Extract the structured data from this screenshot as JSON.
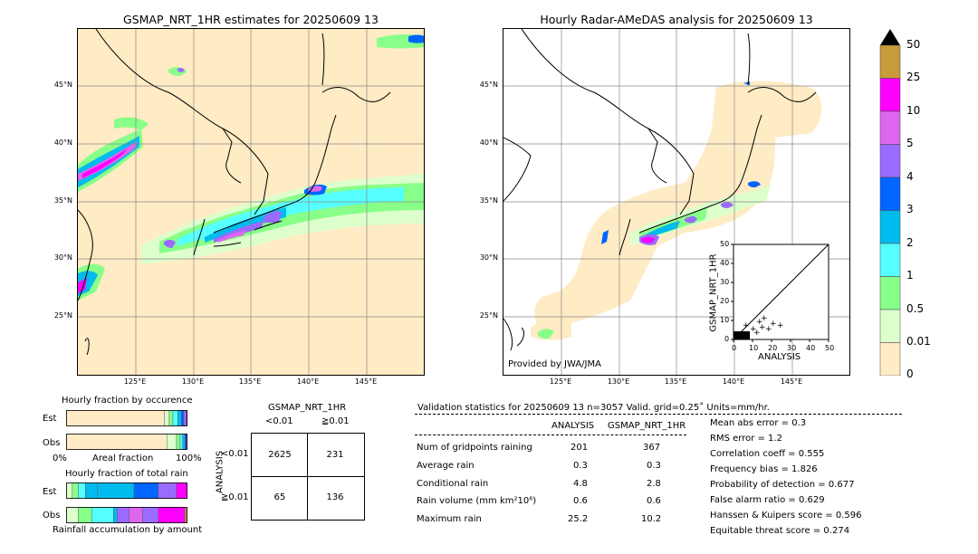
{
  "left_map": {
    "title": "GSMAP_NRT_1HR estimates for 20250609 13",
    "lat_labels": [
      "45°N",
      "40°N",
      "35°N",
      "30°N",
      "25°N"
    ],
    "lon_labels": [
      "125°E",
      "130°E",
      "135°E",
      "140°E",
      "145°E"
    ]
  },
  "right_map": {
    "title": "Hourly Radar-AMeDAS analysis for 20250609 13",
    "lat_labels": [
      "45°N",
      "40°N",
      "35°N",
      "30°N",
      "25°N"
    ],
    "lon_labels": [
      "125°E",
      "130°E",
      "135°E",
      "140°E",
      "145°E"
    ],
    "credit": "Provided by JWA/JMA"
  },
  "colorbar": {
    "labels": [
      "50",
      "25",
      "10",
      "5",
      "4",
      "3",
      "2",
      "1",
      "0.5",
      "0.01",
      "0"
    ],
    "colors": [
      "#c99a3a",
      "#ff00ff",
      "#dd66ee",
      "#9b6bff",
      "#0066ff",
      "#00bbee",
      "#55ffff",
      "#88ff88",
      "#ddffcc",
      "#ffebc4"
    ],
    "extend_color": "#000000"
  },
  "scatter": {
    "ylabel": "GSMAP_NRT_1HR",
    "xlabel": "ANALYSIS",
    "ticks": [
      "0",
      "10",
      "20",
      "30",
      "40",
      "50"
    ]
  },
  "occurrence": {
    "title": "Hourly fraction by occurence",
    "rows": [
      "Est",
      "Obs"
    ],
    "axis_left": "0%",
    "axis_mid": "Areal fraction",
    "axis_right": "100%",
    "est_segments": [
      0.81,
      0.04,
      0.03,
      0.04,
      0.03,
      0.02,
      0.02,
      0.01
    ],
    "obs_segments": [
      0.83,
      0.08,
      0.03,
      0.02,
      0.02,
      0.01,
      0.01
    ],
    "est_colors": [
      "#ffebc4",
      "#ddffcc",
      "#88ff88",
      "#55ffff",
      "#00bbee",
      "#0066ff",
      "#9b6bff",
      "#ff00ff"
    ],
    "obs_colors": [
      "#ffebc4",
      "#ddffcc",
      "#88ff88",
      "#55ffff",
      "#00bbee",
      "#0066ff",
      "#ff00ff"
    ]
  },
  "total_rain": {
    "title": "Hourly fraction of total rain",
    "rows": [
      "Est",
      "Obs"
    ],
    "footer": "Rainfall accumulation by amount",
    "est_segments": [
      0.05,
      0.05,
      0.06,
      0.1,
      0.3,
      0.2,
      0.15,
      0.09
    ],
    "obs_segments": [
      0.1,
      0.11,
      0.18,
      0.03,
      0.1,
      0.11,
      0.13,
      0.22,
      0.02
    ],
    "est_colors": [
      "#ddffcc",
      "#88ff88",
      "#55ffff",
      "#00bbee",
      "#00bbee",
      "#0066ff",
      "#9b6bff",
      "#ff00ff"
    ],
    "obs_colors": [
      "#ddffcc",
      "#88ff88",
      "#55ffff",
      "#00bbee",
      "#9b6bff",
      "#dd66ee",
      "#9b6bff",
      "#ff00ff",
      "#c99a3a"
    ]
  },
  "contingency": {
    "title": "GSMAP_NRT_1HR",
    "col_labels": [
      "<0.01",
      "≧0.01"
    ],
    "row_axis": "ANALYSIS",
    "row_labels": [
      "<0.01",
      "≧0.01"
    ],
    "cells": [
      "2625",
      "231",
      "65",
      "136"
    ]
  },
  "validation": {
    "header": "Validation statistics for 20250609 13  n=3057 Valid. grid=0.25˚ Units=mm/hr.",
    "col_analysis": "ANALYSIS",
    "col_gsmap": "GSMAP_NRT_1HR",
    "rows": [
      {
        "label": "Num of gridpoints raining",
        "a": "201",
        "g": "367"
      },
      {
        "label": "Average rain",
        "a": "0.3",
        "g": "0.3"
      },
      {
        "label": "Conditional rain",
        "a": "4.8",
        "g": "2.8"
      },
      {
        "label": "Rain volume (mm km²10⁶)",
        "a": "0.6",
        "g": "0.6"
      },
      {
        "label": "Maximum rain",
        "a": "25.2",
        "g": "10.2"
      }
    ],
    "scores": [
      "Mean abs error =    0.3",
      "RMS error =    1.2",
      "Correlation coeff =  0.555",
      "Frequency bias =  1.826",
      "Probability of detection =  0.677",
      "False alarm ratio =  0.629",
      "Hanssen & Kuipers score =  0.596",
      "Equitable threat score =  0.274"
    ]
  }
}
